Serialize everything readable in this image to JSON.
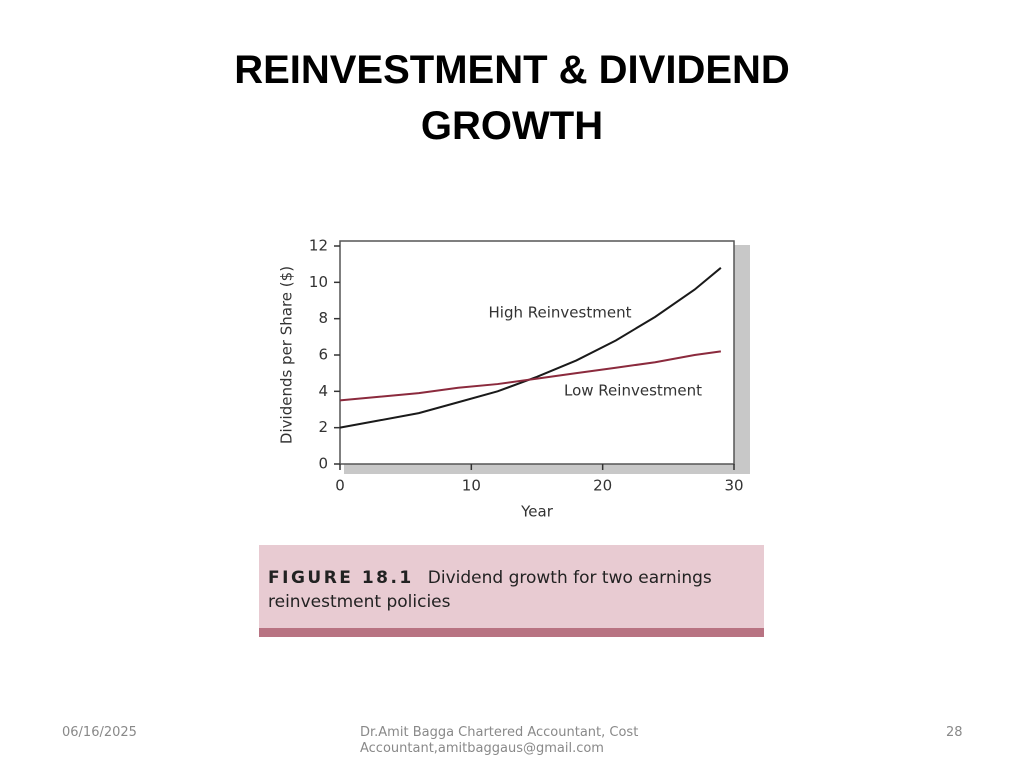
{
  "slide": {
    "title": "REINVESTMENT & DIVIDEND GROWTH",
    "date": "06/16/2025",
    "footer": "Dr.Amit Bagga Chartered Accountant, Cost Accountant,amitbaggaus@gmail.com",
    "page": "28"
  },
  "figure": {
    "number": "FIGURE 18.1",
    "caption": "Dividend growth for two earnings reinvestment policies"
  },
  "chart_data": {
    "type": "line",
    "x_label": "Year",
    "y_label": "Dividends per Share ($)",
    "x": [
      0,
      3,
      6,
      9,
      12,
      15,
      18,
      21,
      24,
      27,
      29
    ],
    "series": [
      {
        "name": "High Reinvestment",
        "color": "#1a1a1a",
        "values": [
          2.0,
          2.4,
          2.8,
          3.4,
          4.0,
          4.8,
          5.7,
          6.8,
          8.1,
          9.6,
          10.8
        ]
      },
      {
        "name": "Low Reinvestment",
        "color": "#8b2a3d",
        "values": [
          3.5,
          3.7,
          3.9,
          4.2,
          4.4,
          4.7,
          5.0,
          5.3,
          5.6,
          6.0,
          6.2
        ]
      }
    ],
    "xlim": [
      0,
      30
    ],
    "xticks": [
      0,
      10,
      20,
      30
    ],
    "ylim": [
      0,
      12
    ],
    "yticks": [
      0,
      2,
      4,
      6,
      8,
      10,
      12
    ],
    "grid": false
  }
}
